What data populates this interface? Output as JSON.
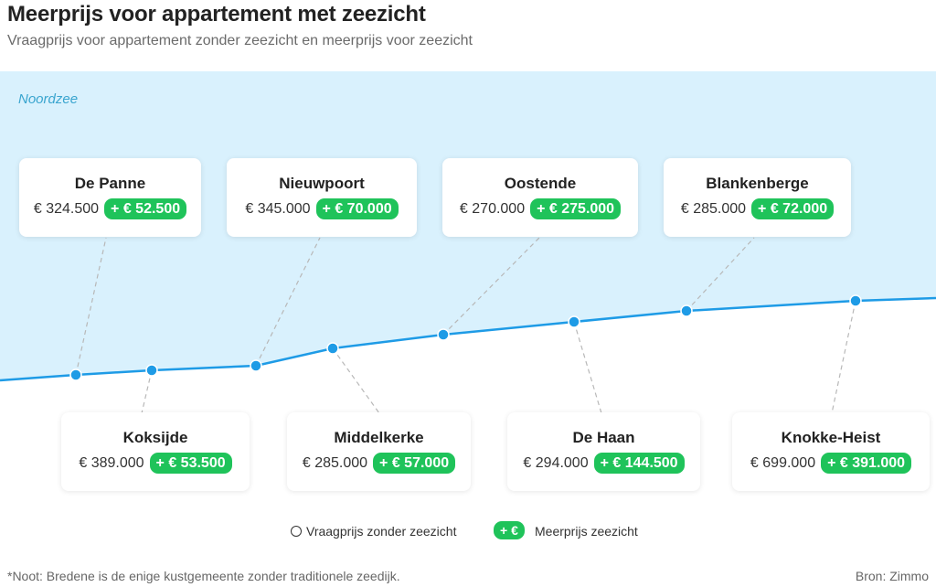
{
  "title": "Meerprijs voor appartement met zeezicht",
  "subtitle": "Vraagprijs voor appartement zonder zeezicht en meerprijs voor zeezicht",
  "sea_label": "Noordzee",
  "colors": {
    "sea": "#d9f1fd",
    "line": "#1e9be6",
    "premium": "#1fc35a",
    "connector": "#b8b8b8"
  },
  "towns_top": [
    {
      "name": "De Panne",
      "price": "€ 324.500",
      "premium": "+ € 52.500"
    },
    {
      "name": "Nieuwpoort",
      "price": "€ 345.000",
      "premium": "+ € 70.000"
    },
    {
      "name": "Oostende",
      "price": "€ 270.000",
      "premium": "+ € 275.000"
    },
    {
      "name": "Blankenberge",
      "price": "€ 285.000",
      "premium": "+ € 72.000"
    }
  ],
  "towns_bottom": [
    {
      "name": "Koksijde",
      "price": "€ 389.000",
      "premium": "+ € 53.500"
    },
    {
      "name": "Middelkerke",
      "price": "€ 285.000",
      "premium": "+ € 57.000"
    },
    {
      "name": "De Haan",
      "price": "€ 294.000",
      "premium": "+ € 144.500"
    },
    {
      "name": "Knokke-Heist",
      "price": "€ 699.000",
      "premium": "+ € 391.000"
    }
  ],
  "legend": {
    "circle_label": "Vraagprijs zonder zeezicht",
    "pill_text": "+ €",
    "pill_label": "Meerprijs zeezicht"
  },
  "note": "*Noot: Bredene is de enige kustgemeente zonder traditionele zeedijk.",
  "source": "Bron: Zimmo"
}
